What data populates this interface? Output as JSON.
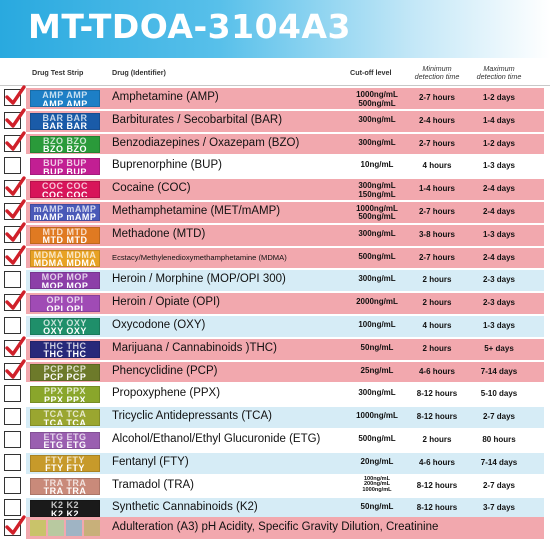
{
  "title": "MT-TDOA-3104A3",
  "header": {
    "strip": "Drug Test Strip",
    "drug": "Drug (Identifier)",
    "cutoff": "Cut-off level",
    "min1": "Minimum",
    "min2": "detection time",
    "max1": "Maximum",
    "max2": "detection time"
  },
  "rows": [
    {
      "code": "AMP",
      "drug": "Amphetamine (AMP)",
      "cut": [
        "1000ng/mL",
        "500ng/mL"
      ],
      "min": "2-7 hours",
      "max": "1-2 days",
      "checked": true,
      "band": "red",
      "strip_color": "#1d7fc6"
    },
    {
      "code": "BAR",
      "drug": "Barbiturates / Secobarbital (BAR)",
      "cut": [
        "300ng/mL"
      ],
      "min": "2-4 hours",
      "max": "1-4 days",
      "checked": true,
      "band": "red",
      "strip_color": "#1a5ba8"
    },
    {
      "code": "BZO",
      "drug": "Benzodiazepines / Oxazepam (BZO)",
      "cut": [
        "300ng/mL"
      ],
      "min": "2-7 hours",
      "max": "1-2 days",
      "checked": true,
      "band": "red",
      "strip_color": "#2a9a3a"
    },
    {
      "code": "BUP",
      "drug": "Buprenorphine (BUP)",
      "cut": [
        "10ng/mL"
      ],
      "min": "4 hours",
      "max": "1-3 days",
      "checked": false,
      "band": "none",
      "strip_color": "#c21f93"
    },
    {
      "code": "COC",
      "drug": "Cocaine (COC)",
      "cut": [
        "300ng/mL",
        "150ng/mL"
      ],
      "min": "1-4 hours",
      "max": "2-4 days",
      "checked": true,
      "band": "red",
      "strip_color": "#d8155a"
    },
    {
      "code": "mAMP",
      "drug": "Methamphetamine (MET/mAMP)",
      "cut": [
        "1000ng/mL",
        "500ng/mL"
      ],
      "min": "2-7 hours",
      "max": "2-4 days",
      "checked": true,
      "band": "red",
      "strip_color": "#4a59b8"
    },
    {
      "code": "MTD",
      "drug": "Methadone (MTD)",
      "cut": [
        "300ng/mL"
      ],
      "min": "3-8 hours",
      "max": "1-3 days",
      "checked": true,
      "band": "red",
      "strip_color": "#e07a22"
    },
    {
      "code": "MDMA",
      "drug": "Ecstacy/Methylenedioxymethamphetamine (MDMA)",
      "cut": [
        "500ng/mL"
      ],
      "min": "2-7 hours",
      "max": "2-4 days",
      "checked": true,
      "band": "red",
      "strip_color": "#e8a224"
    },
    {
      "code": "MOP",
      "drug": "Heroin / Morphine (MOP/OPI 300)",
      "cut": [
        "300ng/mL"
      ],
      "min": "2 hours",
      "max": "2-3 days",
      "checked": false,
      "band": "blue",
      "strip_color": "#8c3fa8"
    },
    {
      "code": "OPI",
      "drug": "Heroin / Opiate (OPI)",
      "cut": [
        "2000ng/mL"
      ],
      "min": "2 hours",
      "max": "2-3 days",
      "checked": true,
      "band": "red",
      "strip_color": "#a04bb5"
    },
    {
      "code": "OXY",
      "drug": "Oxycodone (OXY)",
      "cut": [
        "100ng/mL"
      ],
      "min": "4 hours",
      "max": "1-3 days",
      "checked": false,
      "band": "blue",
      "strip_color": "#1f8f6a"
    },
    {
      "code": "THC",
      "drug": "Marijuana / Cannabinoids )THC)",
      "cut": [
        "50ng/mL"
      ],
      "min": "2 hours",
      "max": "5+ days",
      "checked": true,
      "band": "red",
      "strip_color": "#27297a"
    },
    {
      "code": "PCP",
      "drug": "Phencyclidine (PCP)",
      "cut": [
        "25ng/mL"
      ],
      "min": "4-6 hours",
      "max": "7-14 days",
      "checked": true,
      "band": "red",
      "strip_color": "#6d7a2a"
    },
    {
      "code": "PPX",
      "drug": "Propoxyphene (PPX)",
      "cut": [
        "300ng/mL"
      ],
      "min": "8-12 hours",
      "max": "5-10 days",
      "checked": false,
      "band": "none",
      "strip_color": "#8aa62b"
    },
    {
      "code": "TCA",
      "drug": "Tricyclic Antidepressants (TCA)",
      "cut": [
        "1000ng/mL"
      ],
      "min": "8-12 hours",
      "max": "2-7 days",
      "checked": false,
      "band": "blue",
      "strip_color": "#9aa630"
    },
    {
      "code": "ETG",
      "drug": "Alcohol/Ethanol/Ethyl Glucuronide (ETG)",
      "cut": [
        "500ng/mL"
      ],
      "min": "2 hours",
      "max": "80 hours",
      "checked": false,
      "band": "none",
      "strip_color": "#9a5fb0"
    },
    {
      "code": "FTY",
      "drug": "Fentanyl (FTY)",
      "cut": [
        "20ng/mL"
      ],
      "min": "4-6 hours",
      "max": "7-14 days",
      "checked": false,
      "band": "blue",
      "strip_color": "#c79a2a"
    },
    {
      "code": "TRA",
      "drug": "Tramadol (TRA)",
      "cut": [
        "100ng/mL",
        "200ng/mL",
        "1000ng/mL"
      ],
      "min": "8-12 hours",
      "max": "2-7 days",
      "checked": false,
      "band": "none",
      "strip_color": "#c98a7a"
    },
    {
      "code": "K2",
      "drug": "Synthetic Cannabinoids (K2)",
      "cut": [
        "50ng/mL"
      ],
      "min": "8-12 hours",
      "max": "3-7 days",
      "checked": false,
      "band": "blue",
      "strip_color": "#1a1a1a"
    }
  ],
  "adulteration": {
    "text": "Adulteration (A3) pH Acidity, Specific Gravity Dilution, Creatinine",
    "checked": true,
    "swatches": [
      "#c9c36a",
      "#b8c9a0",
      "#9fb4c4",
      "#c8b07a"
    ]
  },
  "colors": {
    "check": "#d0202a",
    "red_band": "#f2a8ae",
    "blue_band": "#d6ecf6",
    "banner": "#29a9df"
  }
}
